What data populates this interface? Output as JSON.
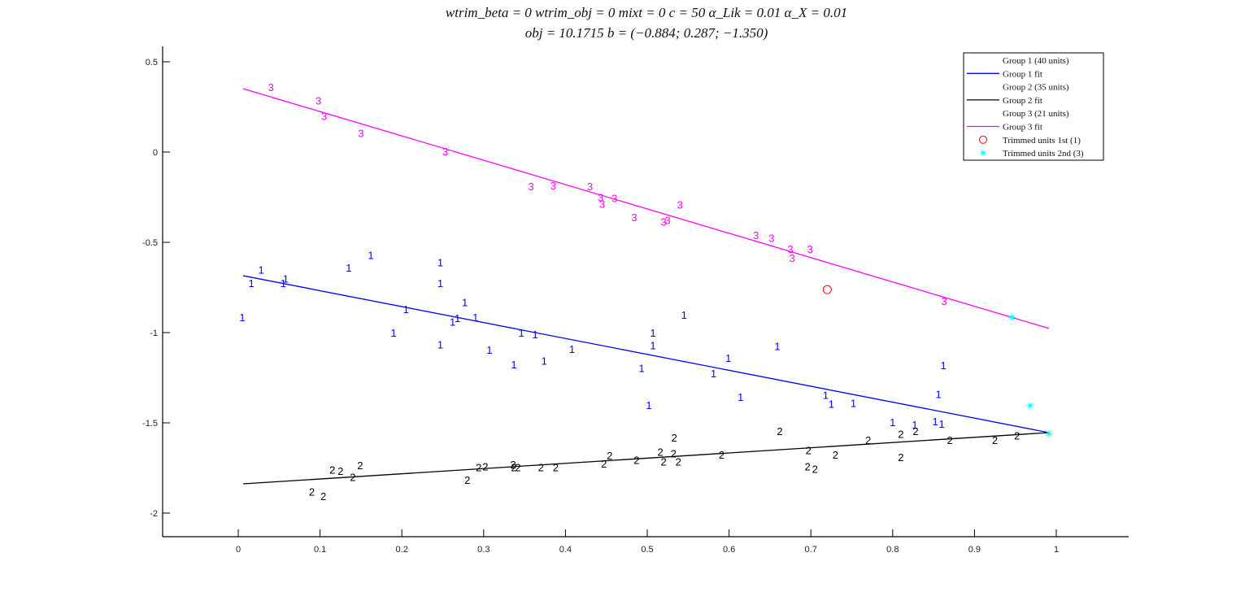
{
  "figure": {
    "title_line1": "wtrim_beta = 0    wtrim_obj = 0    mixt = 0    c = 50    α_Lik = 0.01    α_X = 0.01",
    "title_line2": "obj = 10.1715    b = (−0.884; 0.287; −1.350)"
  },
  "chart_data": {
    "type": "scatter",
    "title": "wtrim_beta = 0  wtrim_obj = 0  mixt = 0  c = 50  α_Lik = 0.01  α_X = 0.01 / obj = 10.1715  b = (−0.884; 0.287; −1.350)",
    "xlabel": "",
    "ylabel": "",
    "xlim": [
      -0.09,
      1.09
    ],
    "ylim": [
      -2.13,
      0.59
    ],
    "grid": false,
    "legend_position": "northeast",
    "xticks": [
      0,
      0.1,
      0.2,
      0.3,
      0.4,
      0.5,
      0.6,
      0.7,
      0.8,
      0.9,
      1
    ],
    "yticks": [
      0.5,
      0,
      -0.5,
      -1,
      -1.5,
      -2
    ],
    "series": [
      {
        "name": "Group 1 (40 units)",
        "marker": "1",
        "color": "#0000ff",
        "points": [
          [
            0.005,
            -0.915
          ],
          [
            0.016,
            -0.725
          ],
          [
            0.028,
            -0.65
          ],
          [
            0.055,
            -0.725
          ],
          [
            0.058,
            -0.7
          ],
          [
            0.135,
            -0.64
          ],
          [
            0.162,
            -0.57
          ],
          [
            0.19,
            -1.0
          ],
          [
            0.205,
            -0.87
          ],
          [
            0.247,
            -0.61
          ],
          [
            0.247,
            -0.725
          ],
          [
            0.247,
            -1.065
          ],
          [
            0.262,
            -0.94
          ],
          [
            0.268,
            -0.92
          ],
          [
            0.277,
            -0.83
          ],
          [
            0.29,
            -0.915
          ],
          [
            0.307,
            -1.095
          ],
          [
            0.337,
            -1.175
          ],
          [
            0.346,
            -1.0
          ],
          [
            0.363,
            -1.01
          ],
          [
            0.374,
            -1.155
          ],
          [
            0.408,
            -1.09
          ],
          [
            0.493,
            -1.195
          ],
          [
            0.502,
            -1.4
          ],
          [
            0.507,
            -1.0
          ],
          [
            0.507,
            -1.07
          ],
          [
            0.545,
            -0.9
          ],
          [
            0.581,
            -1.225
          ],
          [
            0.599,
            -1.14
          ],
          [
            0.614,
            -1.355
          ],
          [
            0.659,
            -1.075
          ],
          [
            0.718,
            -1.345
          ],
          [
            0.725,
            -1.395
          ],
          [
            0.752,
            -1.39
          ],
          [
            0.8,
            -1.495
          ],
          [
            0.827,
            -1.51
          ],
          [
            0.852,
            -1.49
          ],
          [
            0.856,
            -1.34
          ],
          [
            0.86,
            -1.505
          ],
          [
            0.862,
            -1.18
          ]
        ]
      },
      {
        "name": "Group 2 (35 units)",
        "marker": "2",
        "color": "#000000",
        "points": [
          [
            0.09,
            -1.88
          ],
          [
            0.104,
            -1.905
          ],
          [
            0.115,
            -1.76
          ],
          [
            0.125,
            -1.765
          ],
          [
            0.14,
            -1.8
          ],
          [
            0.149,
            -1.735
          ],
          [
            0.28,
            -1.815
          ],
          [
            0.294,
            -1.745
          ],
          [
            0.302,
            -1.74
          ],
          [
            0.336,
            -1.73
          ],
          [
            0.337,
            -1.745
          ],
          [
            0.342,
            -1.745
          ],
          [
            0.37,
            -1.745
          ],
          [
            0.388,
            -1.745
          ],
          [
            0.447,
            -1.725
          ],
          [
            0.454,
            -1.68
          ],
          [
            0.487,
            -1.705
          ],
          [
            0.516,
            -1.66
          ],
          [
            0.52,
            -1.715
          ],
          [
            0.532,
            -1.67
          ],
          [
            0.533,
            -1.58
          ],
          [
            0.538,
            -1.715
          ],
          [
            0.591,
            -1.675
          ],
          [
            0.662,
            -1.545
          ],
          [
            0.697,
            -1.65
          ],
          [
            0.696,
            -1.74
          ],
          [
            0.705,
            -1.755
          ],
          [
            0.73,
            -1.675
          ],
          [
            0.77,
            -1.595
          ],
          [
            0.81,
            -1.69
          ],
          [
            0.81,
            -1.56
          ],
          [
            0.828,
            -1.545
          ],
          [
            0.87,
            -1.595
          ],
          [
            0.925,
            -1.595
          ],
          [
            0.952,
            -1.57
          ]
        ]
      },
      {
        "name": "Group 3 (21 units)",
        "marker": "3",
        "color": "#ff00ff",
        "points": [
          [
            0.04,
            0.36
          ],
          [
            0.098,
            0.285
          ],
          [
            0.105,
            0.2
          ],
          [
            0.15,
            0.105
          ],
          [
            0.253,
            0.005
          ],
          [
            0.358,
            -0.19
          ],
          [
            0.385,
            -0.185
          ],
          [
            0.43,
            -0.19
          ],
          [
            0.443,
            -0.25
          ],
          [
            0.445,
            -0.285
          ],
          [
            0.46,
            -0.255
          ],
          [
            0.484,
            -0.36
          ],
          [
            0.52,
            -0.385
          ],
          [
            0.525,
            -0.375
          ],
          [
            0.54,
            -0.29
          ],
          [
            0.633,
            -0.46
          ],
          [
            0.652,
            -0.475
          ],
          [
            0.675,
            -0.535
          ],
          [
            0.677,
            -0.585
          ],
          [
            0.699,
            -0.535
          ],
          [
            0.863,
            -0.825
          ]
        ]
      }
    ],
    "fits": [
      {
        "name": "Group 1 fit",
        "color": "#0000ff",
        "x": [
          0.006,
          0.991
        ],
        "y": [
          -0.685,
          -1.554
        ]
      },
      {
        "name": "Group 2 fit",
        "color": "#000000",
        "x": [
          0.006,
          0.991
        ],
        "y": [
          -1.838,
          -1.554
        ]
      },
      {
        "name": "Group 3 fit",
        "color": "#ff00ff",
        "x": [
          0.006,
          0.991
        ],
        "y": [
          0.351,
          -0.977
        ]
      }
    ],
    "trimmed": [
      {
        "name": "Trimmed units 1st (1)",
        "marker": "circle",
        "color": "#ff0000",
        "points": [
          [
            0.72,
            -0.762
          ]
        ]
      },
      {
        "name": "Trimmed units 2nd (3)",
        "marker": "asterisk",
        "color": "#00ffff",
        "points": [
          [
            0.946,
            -0.915
          ],
          [
            0.968,
            -1.405
          ],
          [
            0.991,
            -1.56
          ]
        ]
      }
    ]
  },
  "legend": {
    "items": [
      {
        "label": "Group 1 (40 units)",
        "symbol": "none",
        "color": ""
      },
      {
        "label": "Group 1 fit",
        "symbol": "line",
        "color": "#0000ff"
      },
      {
        "label": "Group 2 (35 units)",
        "symbol": "none",
        "color": ""
      },
      {
        "label": "Group 2 fit",
        "symbol": "line",
        "color": "#000000"
      },
      {
        "label": "Group 3 (21 units)",
        "symbol": "none",
        "color": ""
      },
      {
        "label": "Group 3 fit",
        "symbol": "line",
        "color": "#ff00ff"
      },
      {
        "label": "Trimmed units 1st (1)",
        "symbol": "circle",
        "color": "#ff0000"
      },
      {
        "label": "Trimmed units 2nd (3)",
        "symbol": "asterisk",
        "color": "#00ffff"
      }
    ]
  }
}
